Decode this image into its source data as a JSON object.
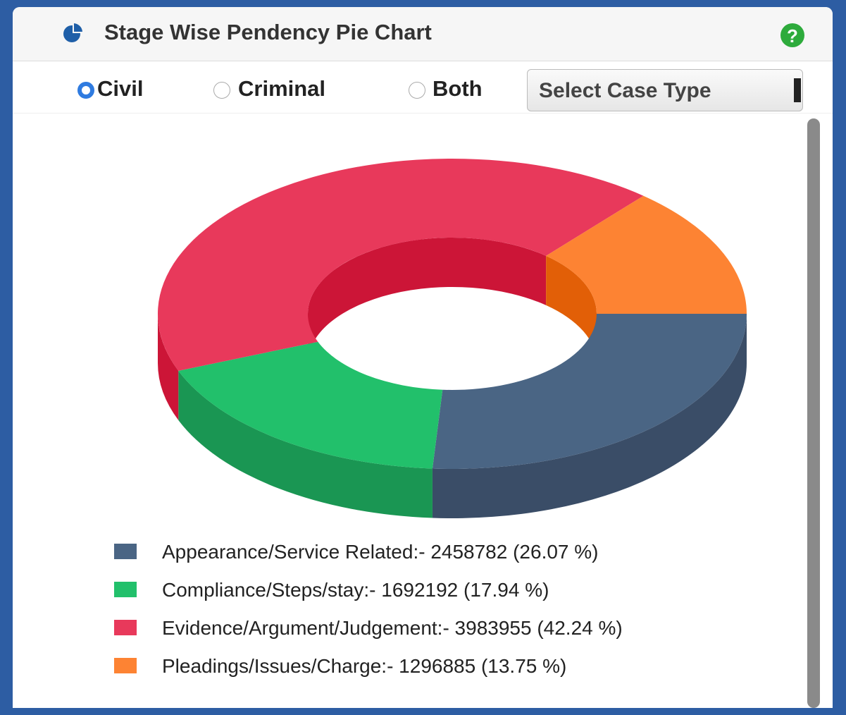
{
  "header": {
    "title": "Stage Wise Pendency Pie Chart"
  },
  "controls": {
    "radios": [
      "Civil",
      "Criminal",
      "Both"
    ],
    "selected": 0,
    "select": "Select Case Type"
  },
  "chart_data": {
    "type": "pie",
    "categories": [
      "Appearance/Service Related:- 2458782 (26.07 %)",
      "Compliance/Steps/stay:- 1692192 (17.94 %)",
      "Evidence/Argument/Judgement:- 3983955 (42.24 %)",
      "Pleadings/Issues/Charge:- 1296885 (13.75 %)"
    ],
    "values": [
      2458782,
      1692192,
      3983955,
      1296885
    ],
    "colors": [
      "#4a6584",
      "#22c06b",
      "#e8395b",
      "#fd8333"
    ],
    "side_colors": [
      "#3a4d67",
      "#1a9653",
      "#cc1537",
      "#e25f07"
    ]
  }
}
